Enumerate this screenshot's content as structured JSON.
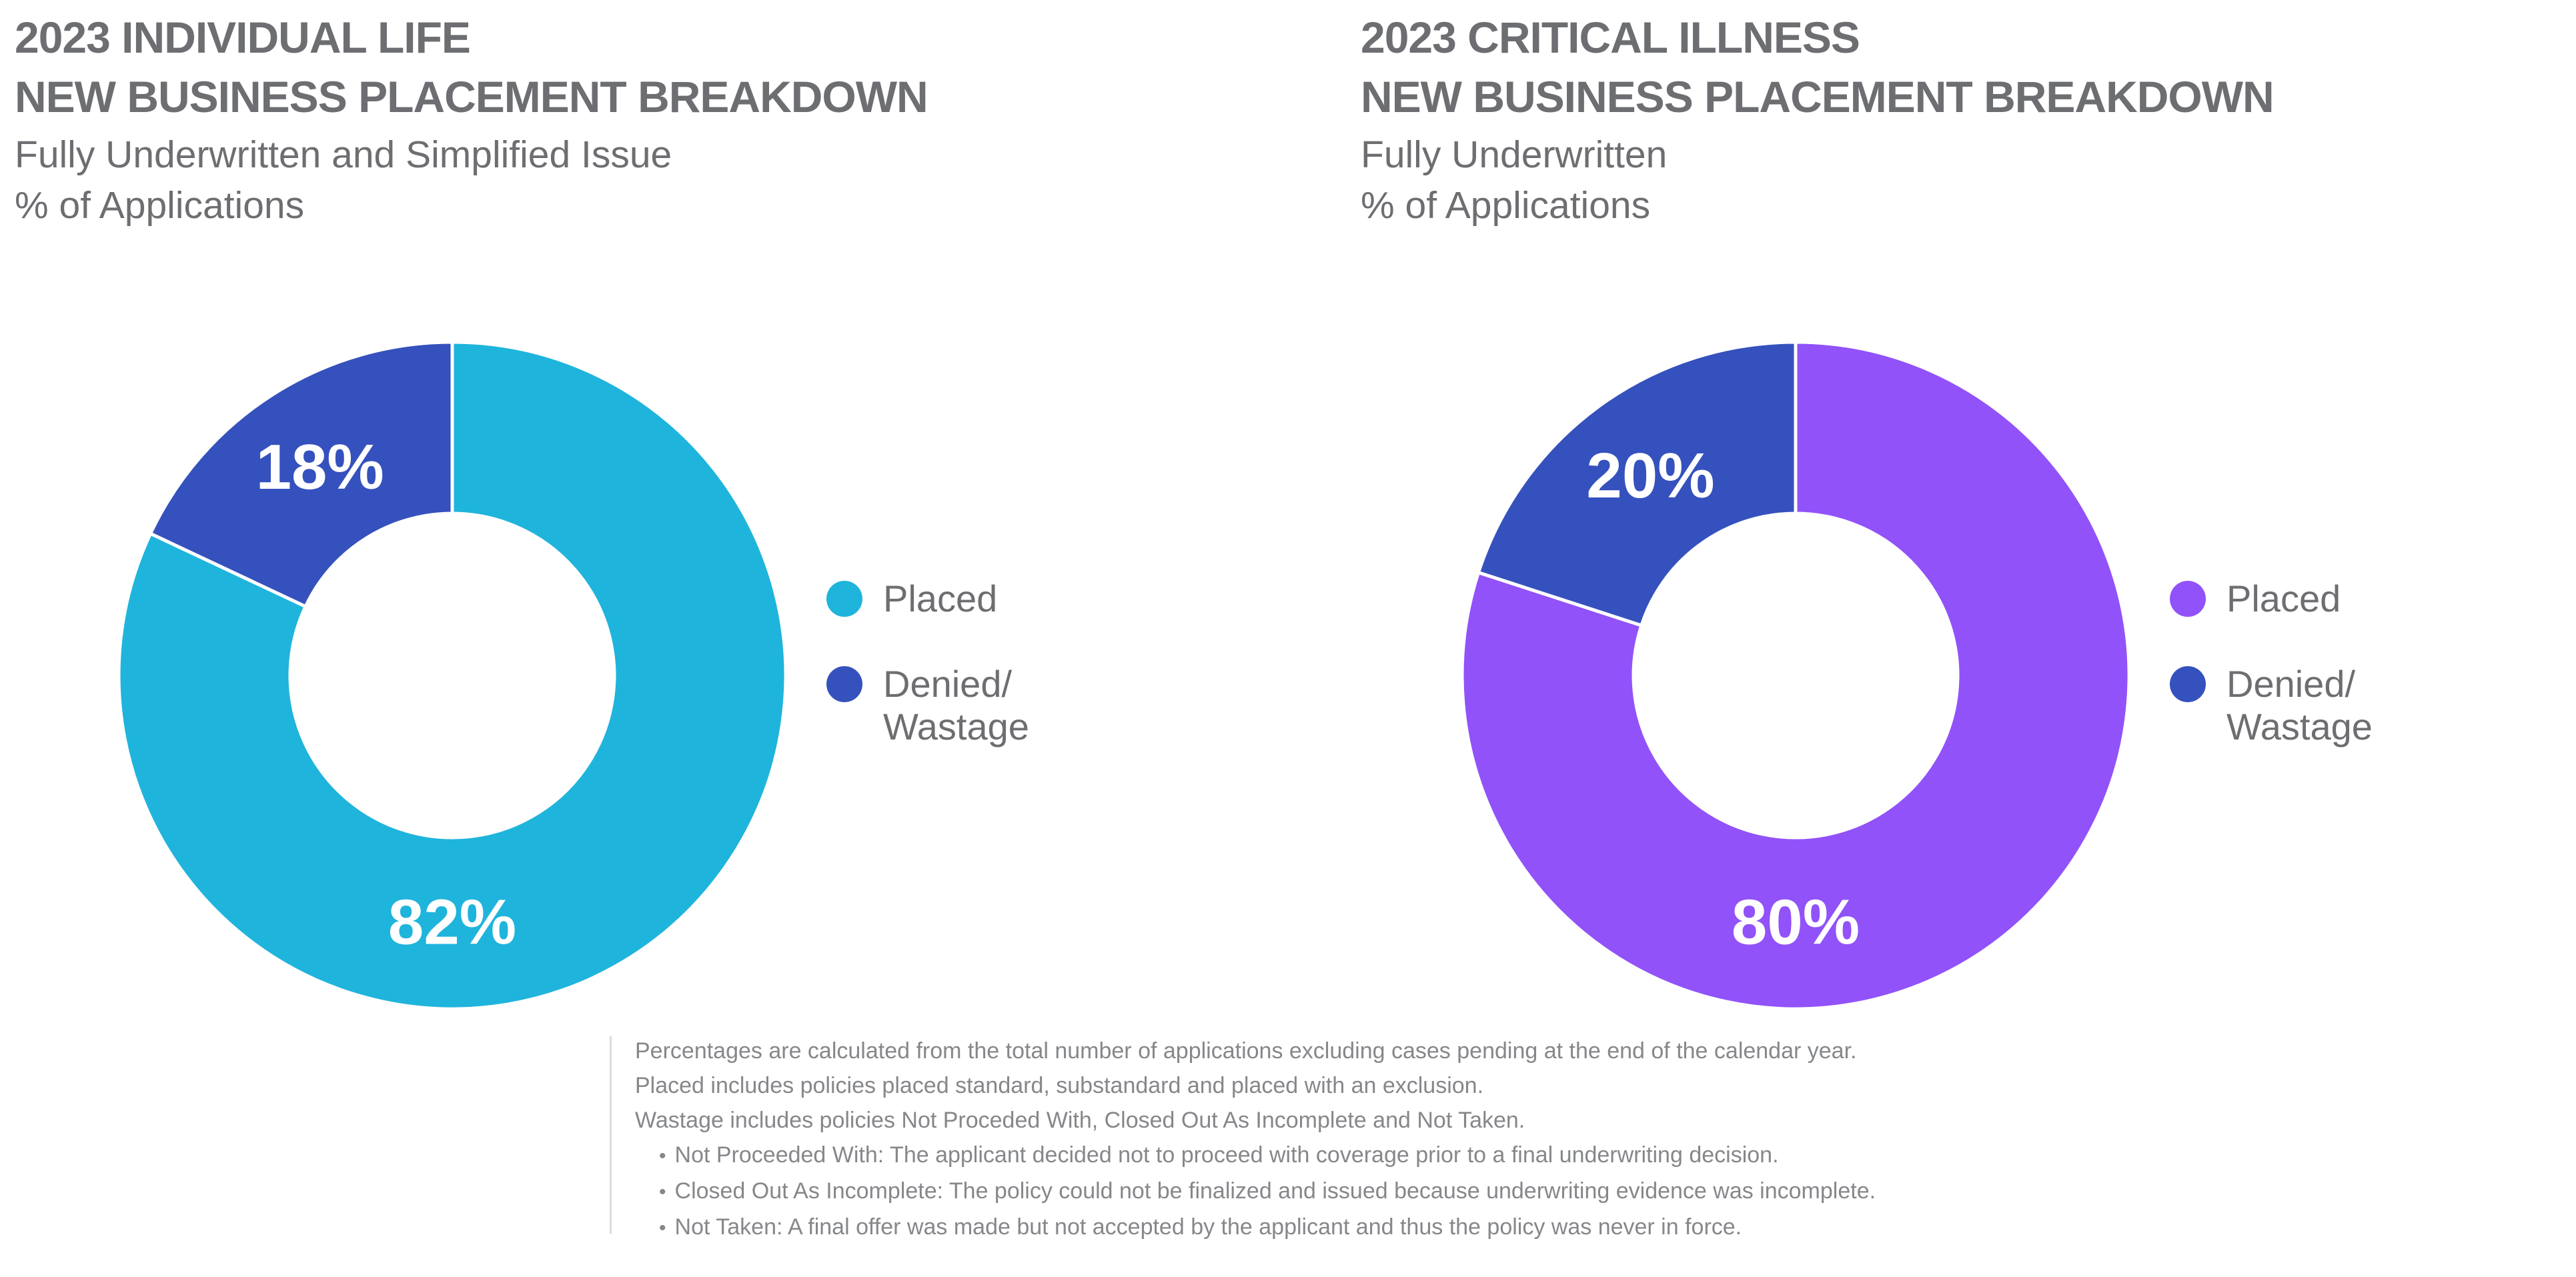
{
  "colors": {
    "cyan": "#1FB4DC",
    "blue": "#3551BD",
    "purple": "#9152F9",
    "heading_gray": "#6D6E71",
    "footnote_gray": "#85878A",
    "rule_gray": "#DBDBDB",
    "label_white": "#FFFFFF"
  },
  "left_chart": {
    "title_line1": "2023 INDIVIDUAL LIFE",
    "title_line2": "NEW BUSINESS PLACEMENT BREAKDOWN",
    "subtitle_line1": "Fully Underwritten and Simplified Issue",
    "subtitle_line2": "% of Applications",
    "legend": [
      {
        "label_lines": [
          "Placed"
        ]
      },
      {
        "label_lines": [
          "Denied/",
          "Wastage"
        ]
      }
    ]
  },
  "right_chart": {
    "title_line1": "2023 CRITICAL ILLNESS",
    "title_line2": "NEW BUSINESS PLACEMENT BREAKDOWN",
    "subtitle_line1": "Fully Underwritten",
    "subtitle_line2": "% of Applications",
    "legend": [
      {
        "label_lines": [
          "Placed"
        ]
      },
      {
        "label_lines": [
          "Denied/",
          "Wastage"
        ]
      }
    ]
  },
  "footnotes": {
    "bullet_char": "•",
    "lines": [
      "Percentages are calculated from the total number of applications excluding cases pending at the end of the calendar year.",
      "Placed includes policies placed standard, substandard and placed with an exclusion.",
      "Wastage includes policies Not Proceded With, Closed Out As Incomplete and Not Taken."
    ],
    "bullets": [
      "Not Proceeded With: The applicant decided not to proceed with coverage prior to a final underwriting decision.",
      "Closed Out As Incomplete: The policy could not be finalized and issued because underwriting evidence was incomplete.",
      "Not Taken: A final offer was made but not accepted by the applicant and thus the policy was never in force."
    ]
  },
  "chart_data": [
    {
      "type": "pie",
      "subtype": "donut",
      "title": "2023 INDIVIDUAL LIFE NEW BUSINESS PLACEMENT BREAKDOWN",
      "subtitle": "Fully Underwritten and Simplified Issue",
      "value_unit": "% of Applications",
      "categories": [
        "Placed",
        "Denied/Wastage"
      ],
      "values": [
        82,
        18
      ],
      "labels": [
        "82%",
        "18%"
      ],
      "colors": [
        "#1FB4DC",
        "#3551BD"
      ],
      "start_angle_deg": 0,
      "direction": "clockwise",
      "inner_radius_ratio": 0.486,
      "label_radius_ratio": 0.74,
      "label_angles_deg": [
        180,
        327.6
      ],
      "legend_position": "right"
    },
    {
      "type": "pie",
      "subtype": "donut",
      "title": "2023 CRITICAL ILLNESS NEW BUSINESS PLACEMENT BREAKDOWN",
      "subtitle": "Fully Underwritten",
      "value_unit": "% of Applications",
      "categories": [
        "Placed",
        "Denied/Wastage"
      ],
      "values": [
        80,
        20
      ],
      "labels": [
        "80%",
        "20%"
      ],
      "colors": [
        "#9152F9",
        "#3551BD"
      ],
      "start_angle_deg": 0,
      "direction": "clockwise",
      "inner_radius_ratio": 0.486,
      "label_radius_ratio": 0.74,
      "label_angles_deg": [
        180,
        324
      ],
      "legend_position": "right"
    }
  ]
}
